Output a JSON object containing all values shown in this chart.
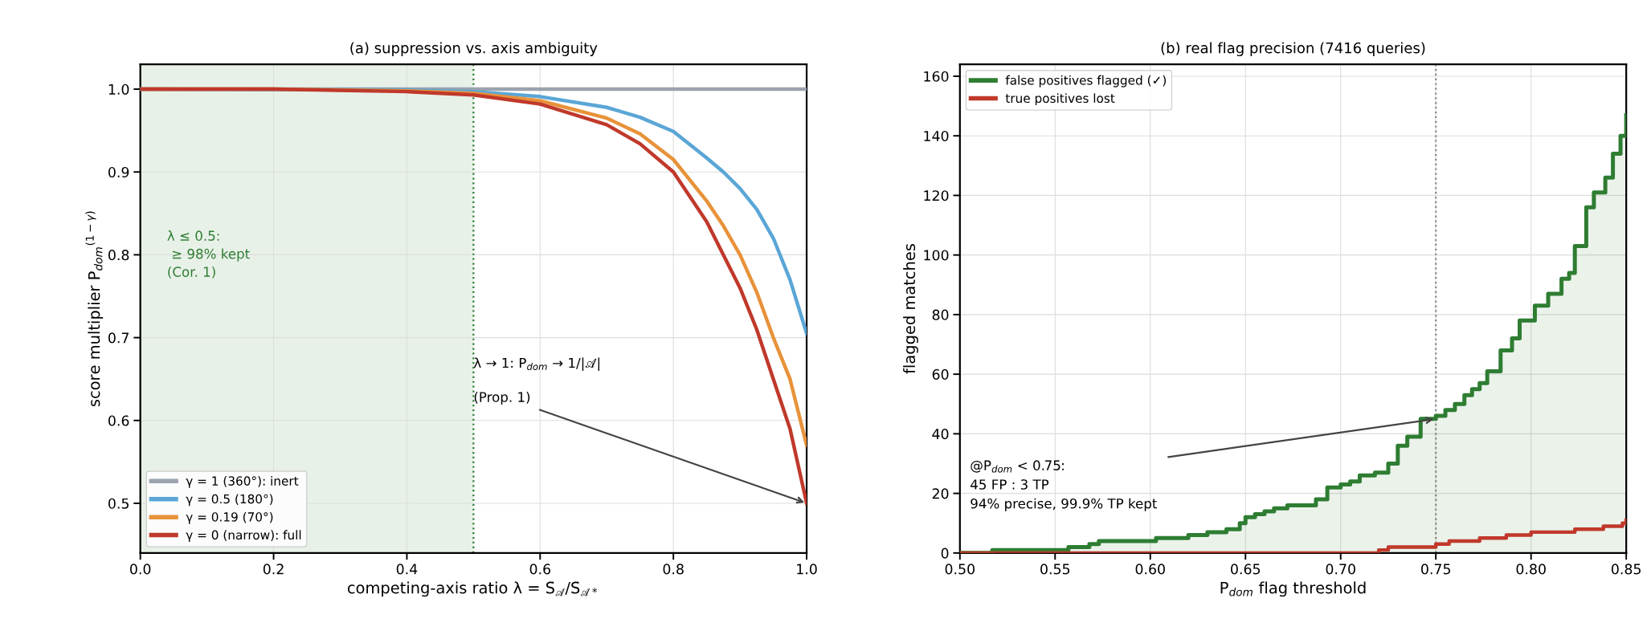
{
  "chart_data": [
    {
      "type": "line",
      "title": "(a) suppression vs. axis ambiguity",
      "xlabel": "competing-axis ratio λ = S̄$_{𝒜}$/S̄$_{𝒜*}$",
      "ylabel": "score multiplier P$_{dom}$$^{(1−γ)}$",
      "xlim": [
        0,
        1
      ],
      "ylim": [
        0.44,
        1.03
      ],
      "xticks": [
        {
          "value": 0,
          "label": "0.0"
        },
        0.2,
        0.4,
        0.6,
        0.8,
        {
          "value": 1,
          "label": "1.0"
        }
      ],
      "yticks": [
        0.5,
        0.6,
        0.7,
        0.8,
        0.9,
        {
          "value": 1,
          "label": "1.0"
        }
      ],
      "grid": true,
      "legend": "lower left",
      "bands": [
        {
          "axis": "x",
          "from": 0,
          "to": 0.5,
          "color": "#e8f1e8"
        }
      ],
      "ref_lines": [
        {
          "axis": "x",
          "value": 0.5,
          "color": "#2e7d32",
          "line_style": "dotted"
        }
      ],
      "annotations": [
        "λ ≤ 0.5:\n ≥ 98% kept\n(Cor. 1)",
        "λ → 1: P$_{dom}$ → 1/|𝒜|",
        {
          "text": "(Prop. 1)",
          "x": 1.0,
          "y": 0.5
        }
      ],
      "series": [
        {
          "name": "γ = 1 (360°): inert",
          "color": "#9aa3ae",
          "x": [
            0,
            1
          ],
          "values": [
            1.0,
            1.0
          ]
        },
        {
          "name": "γ = 0.5 (180°)",
          "color": "#5aa6d6",
          "x": [
            0,
            0.4,
            0.5,
            0.6,
            0.7,
            0.75,
            0.8,
            0.85,
            0.875,
            0.9,
            0.925,
            0.95,
            0.975,
            1.0
          ],
          "values": [
            1.0,
            0.999,
            0.997,
            0.991,
            0.978,
            0.966,
            0.949,
            0.917,
            0.9,
            0.88,
            0.855,
            0.82,
            0.77,
            0.705
          ]
        },
        {
          "name": "γ = 0.19 (70°)",
          "color": "#e8923a",
          "x": [
            0,
            0.2,
            0.4,
            0.5,
            0.6,
            0.7,
            0.75,
            0.8,
            0.85,
            0.875,
            0.9,
            0.925,
            0.95,
            0.975,
            1.0
          ],
          "values": [
            1.0,
            1.0,
            0.998,
            0.995,
            0.986,
            0.965,
            0.946,
            0.915,
            0.865,
            0.835,
            0.8,
            0.755,
            0.7,
            0.65,
            0.57
          ]
        },
        {
          "name": "γ = 0 (narrow): full",
          "color": "#c0392b",
          "x": [
            0,
            0.2,
            0.4,
            0.5,
            0.6,
            0.7,
            0.75,
            0.8,
            0.85,
            0.875,
            0.9,
            0.925,
            0.95,
            0.975,
            1.0
          ],
          "values": [
            1.0,
            1.0,
            0.997,
            0.993,
            0.982,
            0.957,
            0.934,
            0.9,
            0.84,
            0.8,
            0.76,
            0.71,
            0.65,
            0.59,
            0.5
          ]
        }
      ]
    },
    {
      "type": "step",
      "title": "(b) real flag precision (7416 queries)",
      "xlabel": "P$_{dom}$ flag threshold",
      "ylabel": "flagged matches",
      "xlim": [
        0.5,
        0.85
      ],
      "ylim": [
        0,
        164
      ],
      "xticks": [
        {
          "value": 0.5,
          "label": "0.50"
        },
        {
          "value": 0.55,
          "label": "0.55"
        },
        {
          "value": 0.6,
          "label": "0.60"
        },
        {
          "value": 0.65,
          "label": "0.65"
        },
        {
          "value": 0.7,
          "label": "0.70"
        },
        {
          "value": 0.75,
          "label": "0.75"
        },
        {
          "value": 0.8,
          "label": "0.80"
        },
        {
          "value": 0.85,
          "label": "0.85"
        }
      ],
      "yticks": [
        0,
        20,
        40,
        60,
        80,
        100,
        120,
        140,
        160
      ],
      "grid": true,
      "legend": "top left",
      "ref_lines": [
        {
          "axis": "x",
          "value": 0.75,
          "color": "#888888",
          "line_style": "dotted"
        }
      ],
      "annotations": [
        {
          "text": "@P$_{dom}$ < 0.75:\n45 FP : 3 TP\n94% precise, 99.9% TP kept",
          "x": 0.75,
          "y": 45
        }
      ],
      "series": [
        {
          "name": "false positives flagged (✓)",
          "type": "area",
          "color": "#2e7d32",
          "x": [
            0.5,
            0.517,
            0.557,
            0.568,
            0.573,
            0.603,
            0.62,
            0.63,
            0.64,
            0.647,
            0.65,
            0.655,
            0.66,
            0.665,
            0.672,
            0.687,
            0.693,
            0.7,
            0.705,
            0.71,
            0.718,
            0.725,
            0.73,
            0.735,
            0.742,
            0.75,
            0.755,
            0.76,
            0.765,
            0.769,
            0.773,
            0.777,
            0.784,
            0.79,
            0.794,
            0.802,
            0.809,
            0.816,
            0.82,
            0.823,
            0.829,
            0.833,
            0.839,
            0.843,
            0.847,
            0.85
          ],
          "values": [
            0,
            1,
            2,
            3,
            4,
            5,
            6,
            7,
            8,
            10,
            12,
            13,
            14,
            15,
            16,
            18,
            22,
            23,
            24,
            26,
            27,
            30,
            36,
            39,
            45,
            46,
            48,
            50,
            53,
            55,
            57,
            61,
            68,
            72,
            78,
            83,
            87,
            92,
            94,
            103,
            116,
            121,
            126,
            134,
            140,
            147
          ]
        },
        {
          "name": "true positives lost",
          "color": "#c0392b",
          "x": [
            0.5,
            0.72,
            0.725,
            0.75,
            0.757,
            0.762,
            0.773,
            0.787,
            0.8,
            0.823,
            0.838,
            0.848,
            0.85
          ],
          "values": [
            0,
            1,
            2,
            3,
            4,
            4,
            5,
            6,
            7,
            8,
            9,
            10,
            11
          ]
        }
      ]
    }
  ]
}
